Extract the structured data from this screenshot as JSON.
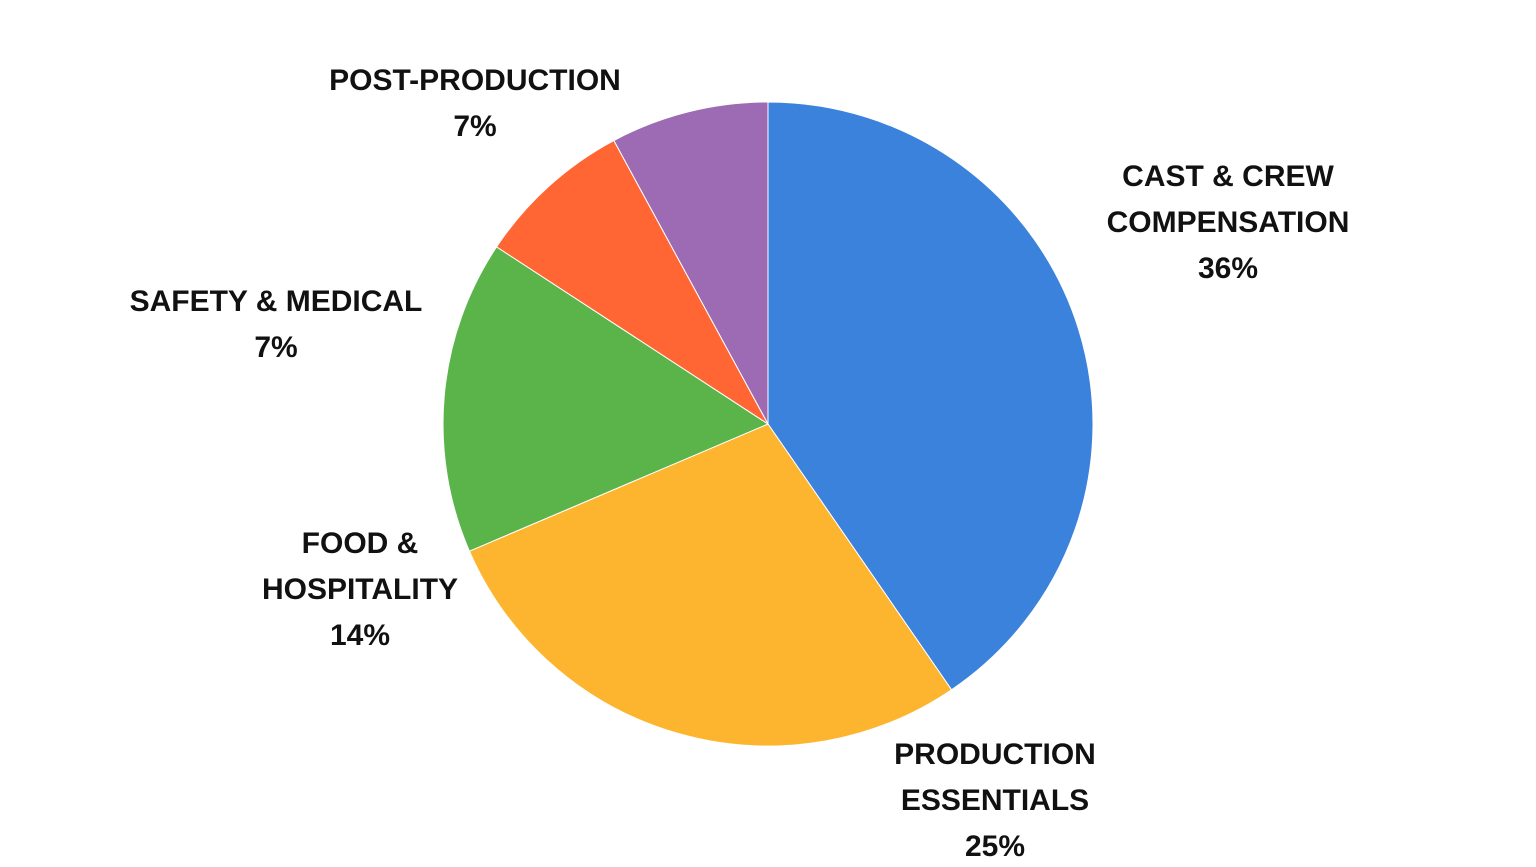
{
  "chart_data": {
    "type": "pie",
    "title": "",
    "legend": "none",
    "slices": [
      {
        "label_lines": [
          "CAST & CREW",
          "COMPENSATION"
        ],
        "value": 36,
        "percent_label": "36%",
        "color": "#3A82DC"
      },
      {
        "label_lines": [
          "PRODUCTION",
          "ESSENTIALS"
        ],
        "value": 25,
        "percent_label": "25%",
        "color": "#FDB52F"
      },
      {
        "label_lines": [
          "FOOD &",
          "HOSPITALITY"
        ],
        "value": 14,
        "percent_label": "14%",
        "color": "#5BB44A"
      },
      {
        "label_lines": [
          "SAFETY &  MEDICAL"
        ],
        "value": 7,
        "percent_label": "7%",
        "color": "#FF6633"
      },
      {
        "label_lines": [
          "POST-PRODUCTION"
        ],
        "value": 7,
        "percent_label": "7%",
        "color": "#9D6BB3"
      }
    ]
  }
}
